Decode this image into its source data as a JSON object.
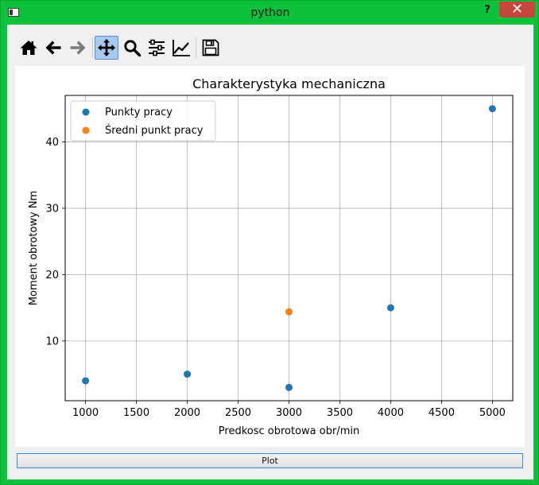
{
  "window": {
    "title": "python",
    "help_label": "?",
    "close_label": "✕"
  },
  "toolbar": {
    "tools": [
      {
        "icon": "home-icon"
      },
      {
        "icon": "back-arrow-icon"
      },
      {
        "icon": "forward-arrow-icon"
      },
      {
        "icon": "pan-icon",
        "active": true
      },
      {
        "icon": "zoom-icon"
      },
      {
        "icon": "subplots-config-icon"
      },
      {
        "icon": "edit-axis-icon"
      },
      {
        "icon": "save-icon"
      }
    ]
  },
  "chart_data": {
    "type": "scatter",
    "title": "Charakterystyka mechaniczna",
    "xlabel": "Predkosc obrotowa obr/min",
    "ylabel": "Moment obrotowy Nm",
    "xlim": [
      800,
      5200
    ],
    "ylim": [
      1.0,
      47.0
    ],
    "xticks": [
      1000,
      1500,
      2000,
      2500,
      3000,
      3500,
      4000,
      4500,
      5000
    ],
    "yticks": [
      10,
      20,
      30,
      40
    ],
    "grid": true,
    "legend_position": "top-left",
    "series": [
      {
        "name": "Punkty pracy",
        "color": "#1f77b4",
        "x": [
          1000,
          2000,
          3000,
          4000,
          5000
        ],
        "y": [
          4,
          5,
          3,
          15,
          45
        ]
      },
      {
        "name": "Średni punkt pracy",
        "color": "#ff7f0e",
        "x": [
          3000
        ],
        "y": [
          14.4
        ]
      }
    ]
  },
  "controls": {
    "plot_label": "Plot"
  }
}
